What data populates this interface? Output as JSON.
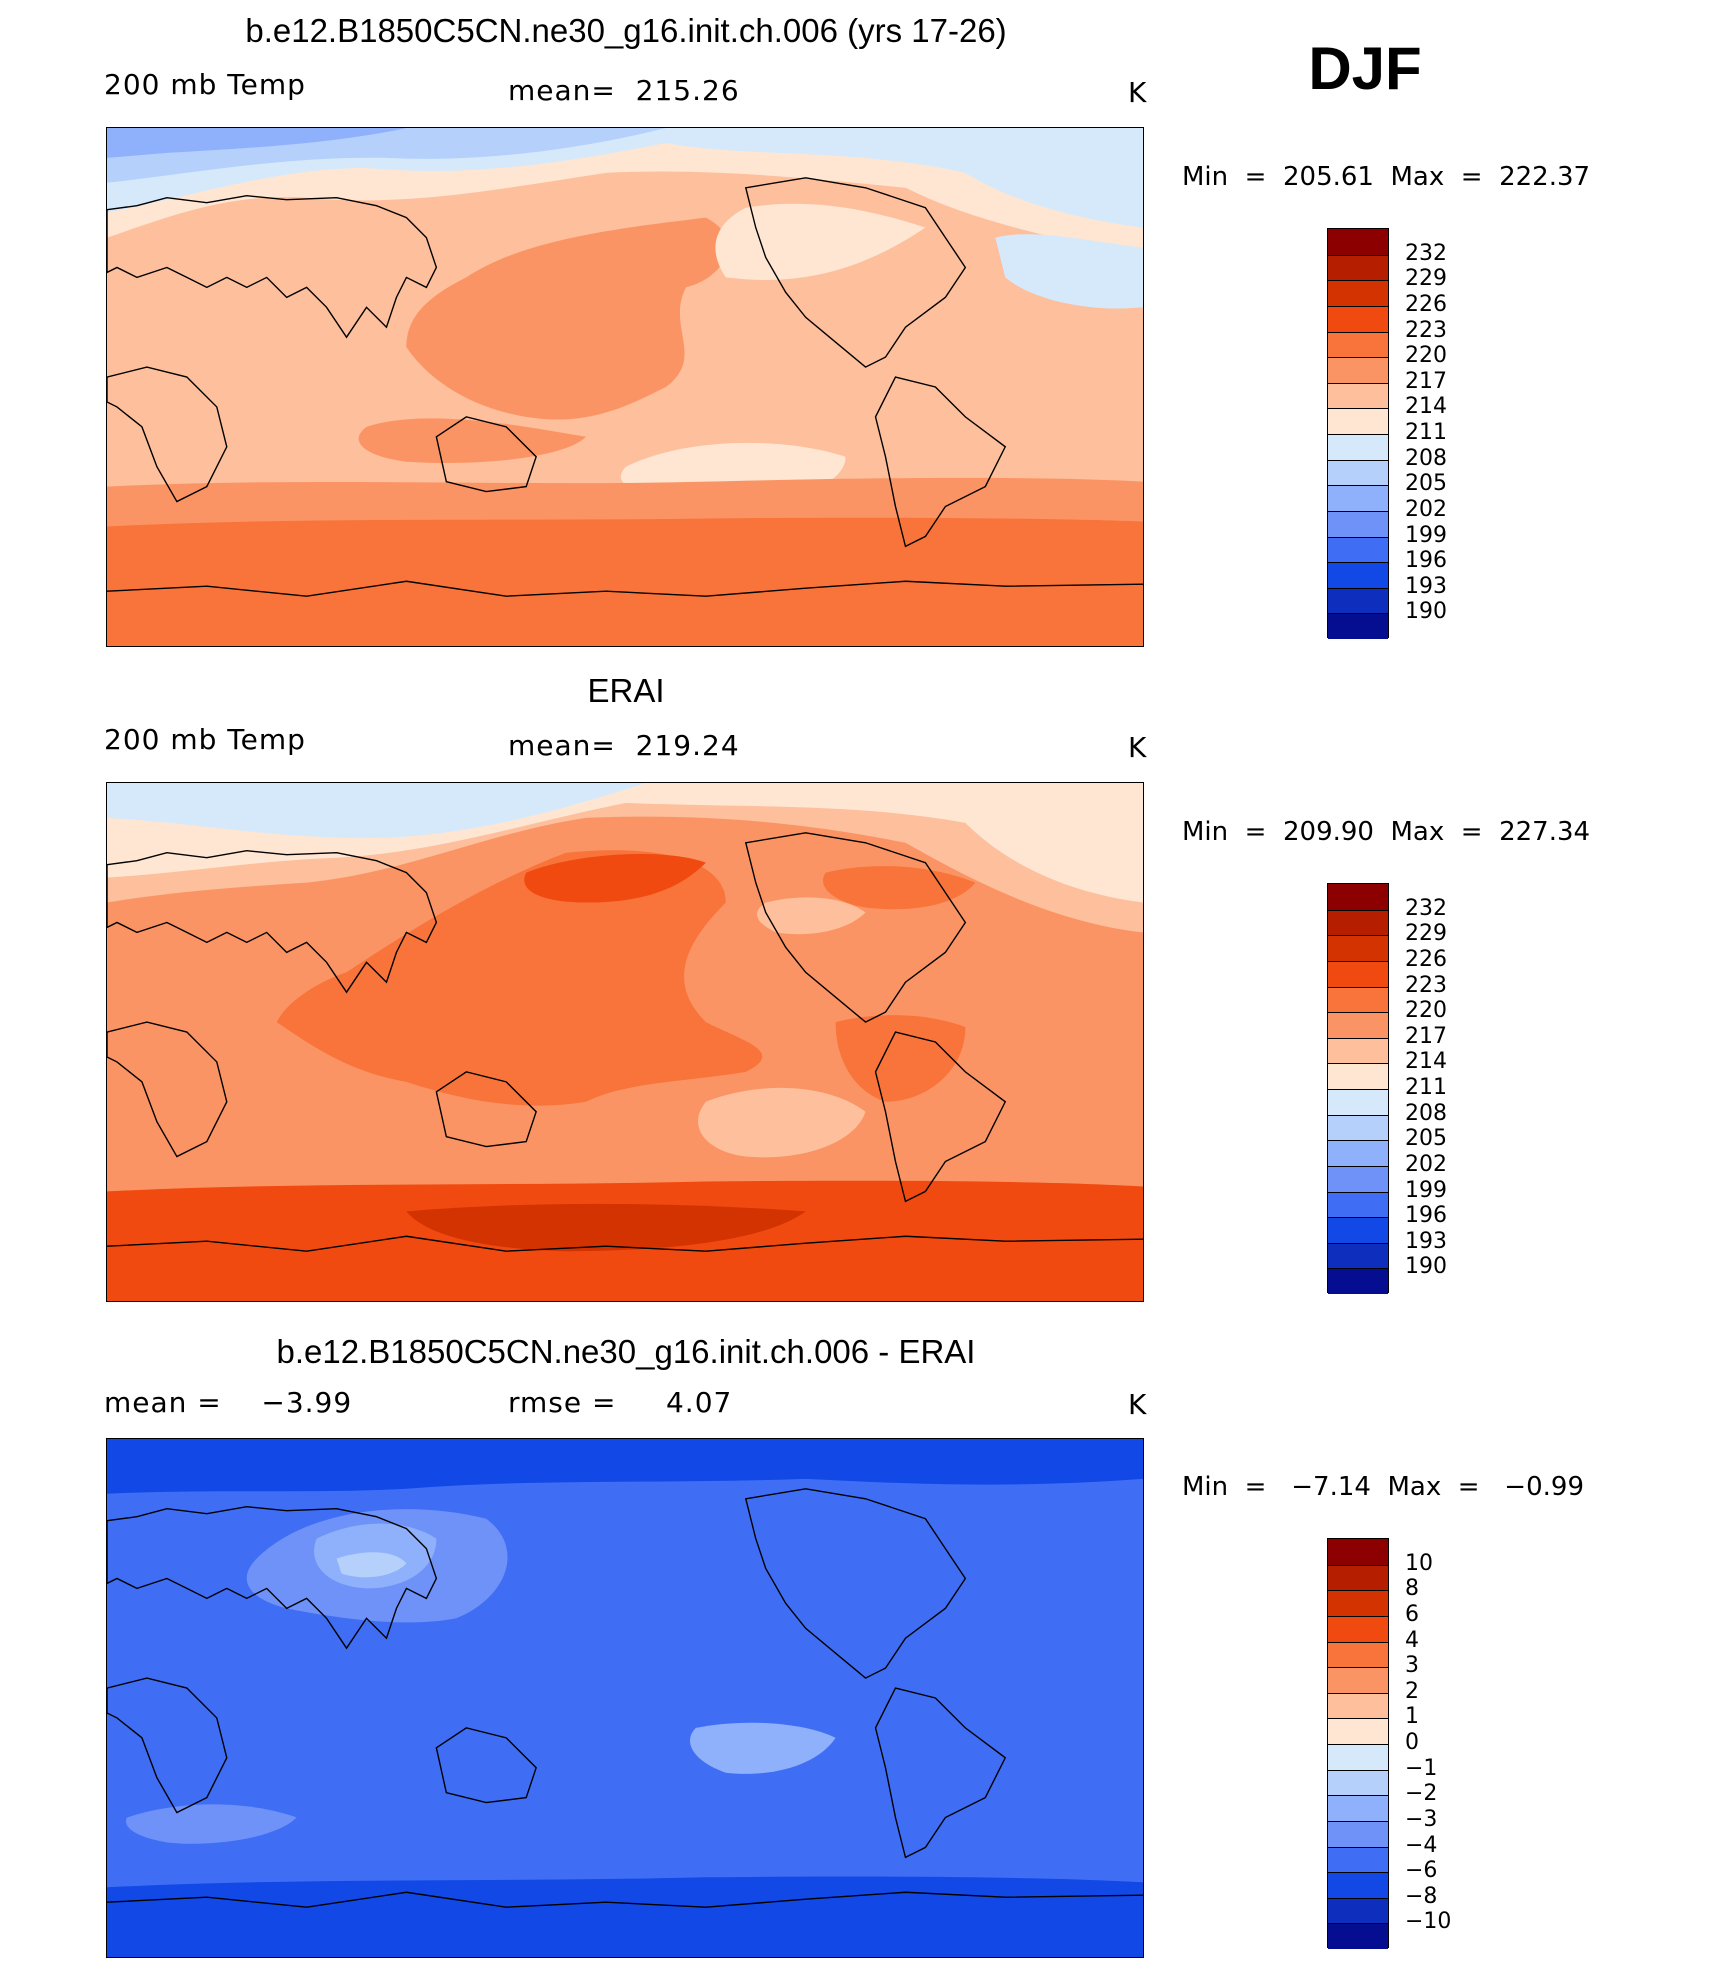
{
  "season": "DJF",
  "colorbar": {
    "abs_levels": [
      "232",
      "229",
      "226",
      "223",
      "220",
      "217",
      "214",
      "211",
      "208",
      "205",
      "202",
      "199",
      "196",
      "193",
      "190"
    ],
    "abs_colors": [
      "#8c0000",
      "#b51f00",
      "#d33300",
      "#f04a10",
      "#f8743a",
      "#fb9464",
      "#fdbf9c",
      "#fee6d2",
      "#d6e9fb",
      "#b5d0fb",
      "#8fb0fb",
      "#6f92f9",
      "#3f6ef5",
      "#1148e6",
      "#0e2fbe",
      "#050e91"
    ],
    "diff_levels": [
      "10",
      "8",
      "6",
      "4",
      "3",
      "2",
      "1",
      "0",
      "−1",
      "−2",
      "−3",
      "−4",
      "−6",
      "−8",
      "−10"
    ],
    "diff_colors": [
      "#8c0000",
      "#b51f00",
      "#d33300",
      "#f04a10",
      "#f8743a",
      "#fb9464",
      "#fdbf9c",
      "#fee6d2",
      "#d6e9fb",
      "#b5d0fb",
      "#8fb0fb",
      "#6f92f9",
      "#3f6ef5",
      "#1148e6",
      "#0e2fbe",
      "#050e91"
    ]
  },
  "panels": [
    {
      "title": "b.e12.B1850C5CN.ne30_g16.init.ch.006 (yrs 17-26)",
      "left_label": "200 mb Temp",
      "center_label": "mean=  215.26",
      "right_label": "K",
      "min_max": "Min  =  205.61  Max  =  222.37"
    },
    {
      "title": "ERAI",
      "left_label": "200 mb Temp",
      "center_label": "mean=  219.24",
      "right_label": "K",
      "min_max": "Min  =  209.90  Max  =  227.34"
    },
    {
      "title": "b.e12.B1850C5CN.ne30_g16.init.ch.006 - ERAI",
      "left_label": "mean =    −3.99",
      "center_label": "rmse =     4.07",
      "right_label": "K",
      "min_max": "Min  =   −7.14  Max  =   −0.99"
    }
  ],
  "chart_data": [
    {
      "type": "heatmap",
      "title": "b.e12.B1850C5CN.ne30_g16.init.ch.006 (yrs 17-26)",
      "variable": "200 mb Temp",
      "units": "K",
      "mean": 215.26,
      "min": 205.61,
      "max": 222.37,
      "contour_levels": [
        190,
        193,
        196,
        199,
        202,
        205,
        208,
        211,
        214,
        217,
        220,
        223,
        226,
        229,
        232
      ],
      "projection": "cylindrical equidistant, centered on Pacific"
    },
    {
      "type": "heatmap",
      "title": "ERAI",
      "variable": "200 mb Temp",
      "units": "K",
      "mean": 219.24,
      "min": 209.9,
      "max": 227.34,
      "contour_levels": [
        190,
        193,
        196,
        199,
        202,
        205,
        208,
        211,
        214,
        217,
        220,
        223,
        226,
        229,
        232
      ],
      "projection": "cylindrical equidistant, centered on Pacific"
    },
    {
      "type": "heatmap",
      "title": "b.e12.B1850C5CN.ne30_g16.init.ch.006 - ERAI",
      "units": "K",
      "mean": -3.99,
      "rmse": 4.07,
      "min": -7.14,
      "max": -0.99,
      "contour_levels": [
        -10,
        -8,
        -6,
        -4,
        -3,
        -2,
        -1,
        0,
        1,
        2,
        3,
        4,
        6,
        8,
        10
      ],
      "projection": "cylindrical equidistant, centered on Pacific"
    }
  ]
}
